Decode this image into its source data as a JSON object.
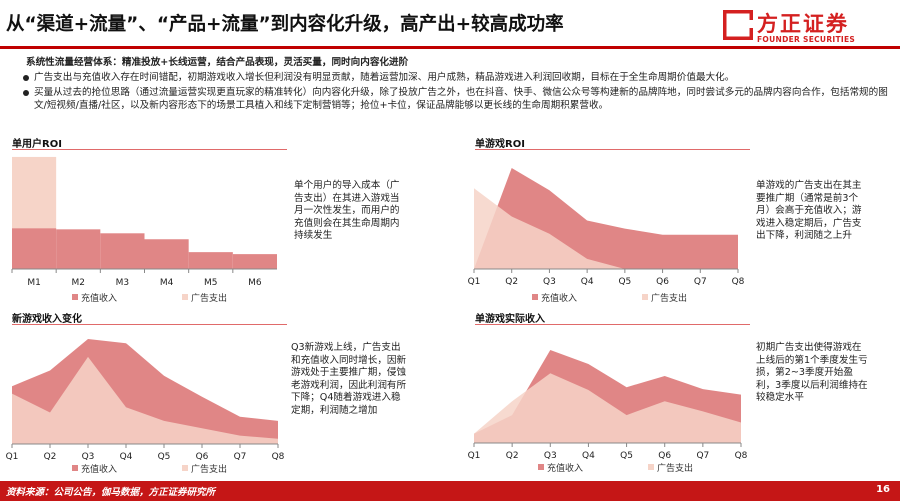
{
  "header": {
    "title": "从“渠道+流量”、“产品+流量”到内容化升级，高产出+较高成功率",
    "logo_cn": "方正证券",
    "logo_en": "FOUNDER SECURITIES"
  },
  "intro": {
    "heading": "系统性流量经营体系：精准投放+长线运营，结合产品表现，灵活买量，同时向内容化进阶",
    "bullets": [
      "广告支出与充值收入存在时间错配，初期游戏收入增长但利润没有明显贡献，随着运营加深、用户成熟，精品游戏进入利润回收期，目标在于全生命周期价值最大化。",
      "买量从过去的抢位思路（通过流量运营实现更直玩家的精准转化）向内容化升级，除了投放广告之外，也在抖音、快手、微信公众号等构建新的品牌阵地，同时尝试多元的品牌内容向合作，包括常规的图文/短视频/直播/社区，以及新内容形态下的场景工具植入和线下定制营销等；抢位+卡位，保证品牌能够以更长线的生命周期积累营收。"
    ]
  },
  "colors": {
    "revenue": "#e08686",
    "ad": "#f6d4c8",
    "brand": "#c51616"
  },
  "legend": {
    "revenue": "充值收入",
    "ad": "广告支出"
  },
  "panels": {
    "user_roi": {
      "title": "单用户ROI",
      "note": "单个用户的导入成本（广告支出）在其进入游戏当月一次性发生，而用户的充值则会在其生命周期内持续发生"
    },
    "game_roi": {
      "title": "单游戏ROI",
      "note": "单游戏的广告支出在其主要推广期（通常是前3个月）会高于充值收入；游戏进入稳定期后，广告支出下降，利润随之上升"
    },
    "new_game": {
      "title": "新游戏收入变化",
      "note": "Q3新游戏上线，广告支出和充值收入同时增长，因新游戏处于主要推广期，侵蚀老游戏利润，因此利润有所下降；Q4随着游戏进入稳定期，利润随之增加"
    },
    "actual": {
      "title": "单游戏实际收入",
      "note": "初期广告支出使得游戏在上线后的第1个季度发生亏损，第2~3季度开始盈利，3季度以后利润维持在较稳定水平"
    }
  },
  "chart_data": [
    {
      "type": "bar",
      "title": "单用户ROI",
      "categories": [
        "M1",
        "M2",
        "M3",
        "M4",
        "M5",
        "M6"
      ],
      "series": [
        {
          "name": "充值收入",
          "values": [
            41,
            40,
            36,
            30,
            17,
            15
          ]
        },
        {
          "name": "广告支出",
          "values": [
            113,
            0,
            0,
            0,
            0,
            0
          ]
        }
      ],
      "ylim": [
        0,
        120
      ]
    },
    {
      "type": "area",
      "title": "单游戏ROI",
      "categories": [
        "Q1",
        "Q2",
        "Q3",
        "Q4",
        "Q5",
        "Q6",
        "Q7",
        "Q8"
      ],
      "series": [
        {
          "name": "充值收入",
          "values": [
            0,
            100,
            78,
            48,
            40,
            34,
            34,
            34
          ]
        },
        {
          "name": "广告支出",
          "values": [
            80,
            52,
            35,
            10,
            0,
            0,
            0,
            0
          ]
        }
      ],
      "ylim": [
        0,
        100
      ]
    },
    {
      "type": "area",
      "title": "新游戏收入变化",
      "categories": [
        "Q1",
        "Q2",
        "Q3",
        "Q4",
        "Q5",
        "Q6",
        "Q7",
        "Q8"
      ],
      "series": [
        {
          "name": "充值收入",
          "values": [
            55,
            70,
            100,
            96,
            65,
            45,
            26,
            22
          ]
        },
        {
          "name": "广告支出",
          "values": [
            48,
            30,
            83,
            35,
            22,
            15,
            8,
            5
          ]
        }
      ],
      "ylim": [
        0,
        100
      ]
    },
    {
      "type": "area",
      "title": "单游戏实际收入",
      "categories": [
        "Q1",
        "Q2",
        "Q3",
        "Q4",
        "Q5",
        "Q6",
        "Q7",
        "Q8"
      ],
      "series": [
        {
          "name": "充值收入",
          "values": [
            10,
            30,
            100,
            85,
            60,
            72,
            58,
            52
          ]
        },
        {
          "name": "广告支出",
          "values": [
            10,
            45,
            75,
            57,
            30,
            45,
            34,
            22
          ]
        }
      ],
      "ylim": [
        0,
        100
      ]
    }
  ],
  "footer": {
    "source": "资料来源：公司公告，伽马数据，方正证券研究所",
    "page": "16"
  }
}
